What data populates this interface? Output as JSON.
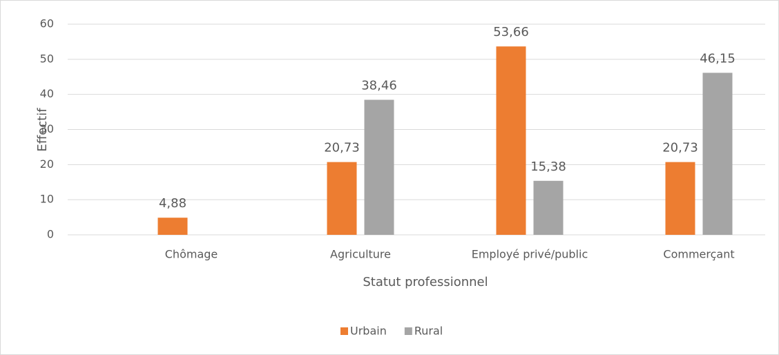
{
  "chart_data": {
    "type": "bar",
    "categories": [
      "Chômage",
      "Agriculture",
      "Employé privé/public",
      "Commerçant"
    ],
    "series": [
      {
        "name": "Urbain",
        "color": "#ed7d31",
        "values": [
          4.88,
          20.73,
          53.66,
          20.73
        ],
        "value_labels": [
          "4,88",
          "20,73",
          "53,66",
          "20,73"
        ]
      },
      {
        "name": "Rural",
        "color": "#a5a5a5",
        "values": [
          null,
          38.46,
          15.38,
          46.15
        ],
        "value_labels": [
          null,
          "38,46",
          "15,38",
          "46,15"
        ]
      }
    ],
    "ylim": [
      0,
      60
    ],
    "yticks": [
      0,
      10,
      20,
      30,
      40,
      50,
      60
    ],
    "grid": true,
    "xlabel": "Statut professionnel",
    "ylabel": "Effectif",
    "legend": "bottom"
  }
}
